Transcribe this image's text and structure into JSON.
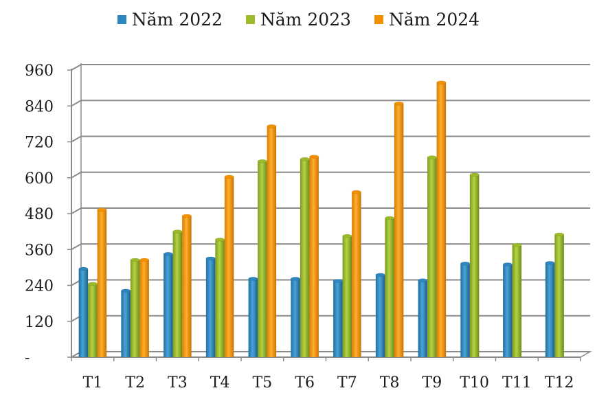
{
  "chart_data": {
    "type": "bar",
    "categories": [
      "T1",
      "T2",
      "T3",
      "T4",
      "T5",
      "T6",
      "T7",
      "T8",
      "T9",
      "T10",
      "T11",
      "T12"
    ],
    "series": [
      {
        "name": "Năm 2022",
        "color": "#2E86C1",
        "values": [
          295,
          222,
          345,
          330,
          262,
          262,
          255,
          275,
          257,
          313,
          310,
          315
        ]
      },
      {
        "name": "Năm 2023",
        "color": "#9BBB2A",
        "values": [
          245,
          325,
          420,
          393,
          655,
          662,
          405,
          465,
          668,
          610,
          375,
          410
        ]
      },
      {
        "name": "Năm 2024",
        "color": "#F39200",
        "values": [
          493,
          325,
          472,
          603,
          772,
          670,
          552,
          848,
          918,
          null,
          null,
          null
        ]
      }
    ],
    "yticks": [
      "-",
      "120",
      "240",
      "360",
      "480",
      "600",
      "720",
      "840",
      "960"
    ],
    "ylim": [
      0,
      960
    ],
    "grid": true,
    "legend_position": "top"
  }
}
